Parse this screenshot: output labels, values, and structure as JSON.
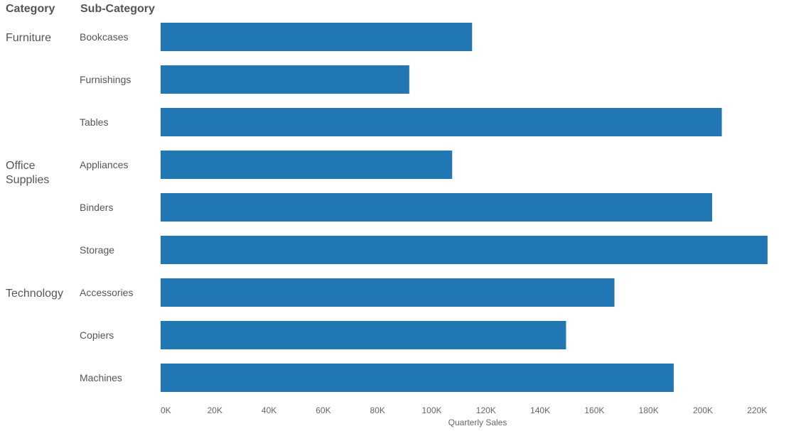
{
  "chart_data": {
    "type": "bar",
    "orientation": "horizontal",
    "headers": {
      "category": "Category",
      "subcategory": "Sub-Category"
    },
    "groups": [
      {
        "category": "Furniture",
        "items": [
          {
            "name": "Bookcases",
            "value": 114880
          },
          {
            "name": "Furnishings",
            "value": 91705
          },
          {
            "name": "Tables",
            "value": 206966
          }
        ]
      },
      {
        "category": "Office Supplies",
        "category_lines": [
          "Office",
          "Supplies"
        ],
        "items": [
          {
            "name": "Appliances",
            "value": 107532
          },
          {
            "name": "Binders",
            "value": 203413
          },
          {
            "name": "Storage",
            "value": 223844
          }
        ]
      },
      {
        "category": "Technology",
        "items": [
          {
            "name": "Accessories",
            "value": 167380
          },
          {
            "name": "Copiers",
            "value": 149528
          },
          {
            "name": "Machines",
            "value": 189239
          }
        ]
      }
    ],
    "xlabel": "Quarterly Sales",
    "xlim": [
      0,
      226000
    ],
    "xticks": [
      0,
      20000,
      40000,
      60000,
      80000,
      100000,
      120000,
      140000,
      160000,
      180000,
      200000,
      220000
    ],
    "xtick_labels": [
      "0K",
      "20K",
      "40K",
      "60K",
      "80K",
      "100K",
      "120K",
      "140K",
      "160K",
      "180K",
      "200K",
      "220K"
    ],
    "bar_color": "#2077b4",
    "grid": false,
    "legend": "none"
  }
}
